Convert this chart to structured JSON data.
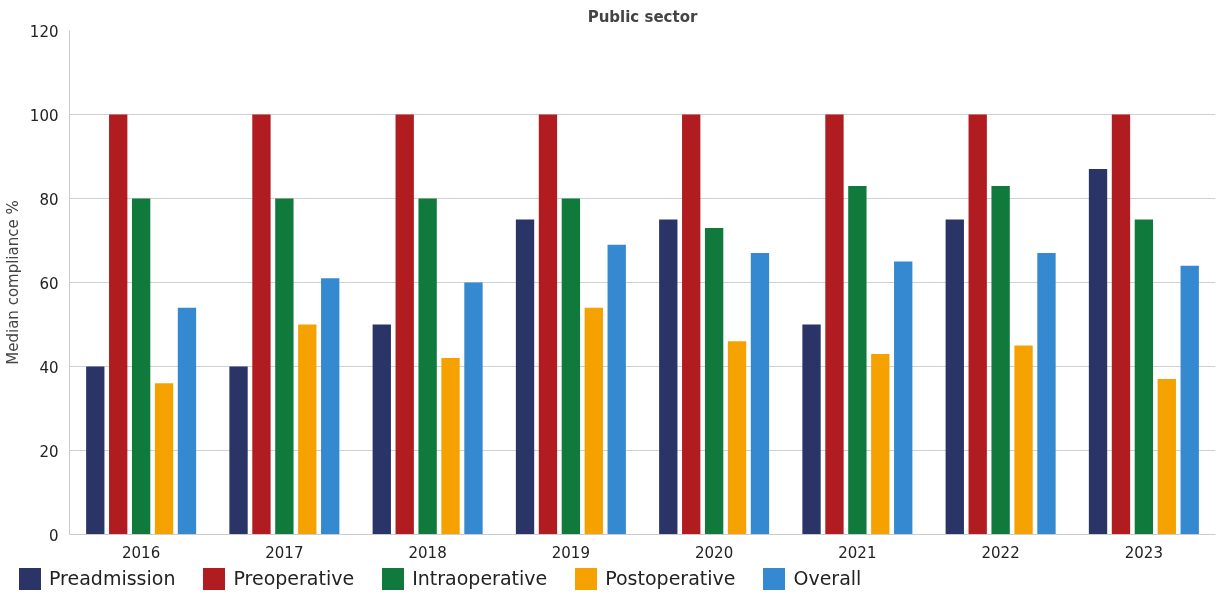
{
  "chart_data": {
    "type": "bar",
    "title": "Public sector",
    "ylabel": "Median compliance %",
    "categories": [
      "2016",
      "2017",
      "2018",
      "2019",
      "2020",
      "2021",
      "2022",
      "2023"
    ],
    "series": [
      {
        "name": "Preadmission",
        "color": "#2b3467",
        "values": [
          40,
          40,
          50,
          75,
          75,
          50,
          75,
          87
        ]
      },
      {
        "name": "Preoperative",
        "color": "#b01c1f",
        "values": [
          100,
          100,
          100,
          100,
          100,
          100,
          100,
          100
        ]
      },
      {
        "name": "Intraoperative",
        "color": "#107a3d",
        "values": [
          80,
          80,
          80,
          80,
          73,
          83,
          83,
          75
        ]
      },
      {
        "name": "Postoperative",
        "color": "#f5a200",
        "values": [
          36,
          50,
          42,
          54,
          46,
          43,
          45,
          37
        ]
      },
      {
        "name": "Overall",
        "color": "#3589d1",
        "values": [
          54,
          61,
          60,
          69,
          67,
          65,
          67,
          64
        ]
      }
    ],
    "ylim": [
      0,
      120
    ],
    "yticks": [
      0,
      20,
      40,
      60,
      80,
      100,
      120
    ],
    "grid": "y",
    "legend": "bottom"
  }
}
